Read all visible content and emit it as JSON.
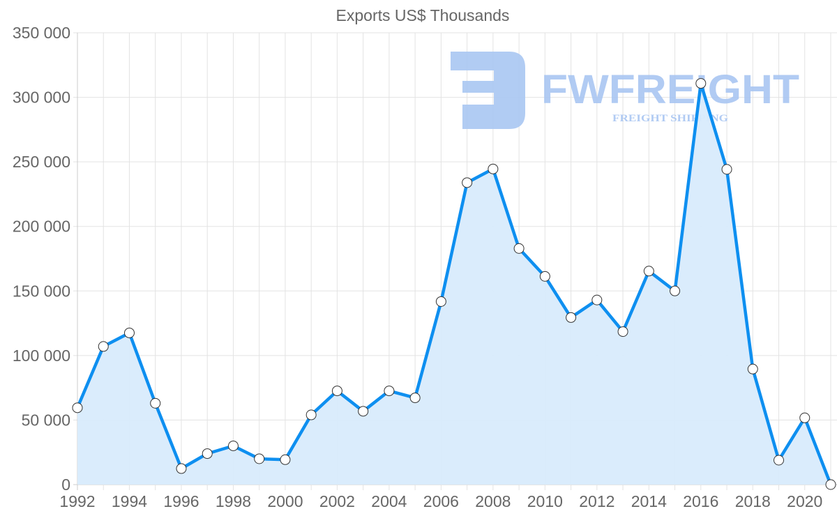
{
  "chart_data": {
    "type": "line",
    "title": "Exports US$ Thousands",
    "xlabel": "",
    "ylabel": "",
    "x": [
      1992,
      1993,
      1994,
      1995,
      1996,
      1997,
      1998,
      1999,
      2000,
      2001,
      2002,
      2003,
      2004,
      2005,
      2006,
      2007,
      2008,
      2009,
      2010,
      2011,
      2012,
      2013,
      2014,
      2015,
      2016,
      2017,
      2018,
      2019,
      2020,
      2021
    ],
    "series": [
      {
        "name": "Exports US$ Thousands",
        "values": [
          59500,
          107000,
          117500,
          63000,
          12400,
          24000,
          30000,
          20000,
          19300,
          54000,
          72600,
          56800,
          72600,
          67200,
          141800,
          233900,
          244500,
          182900,
          161300,
          129400,
          143000,
          118500,
          165400,
          150000,
          310800,
          244200,
          89500,
          18900,
          51700,
          0
        ]
      }
    ],
    "ylim": [
      0,
      350000
    ],
    "xlim": [
      1992,
      2021
    ],
    "yticks": [
      0,
      50000,
      100000,
      150000,
      200000,
      250000,
      300000,
      350000
    ],
    "ytick_labels": [
      "0",
      "50 000",
      "100 000",
      "150 000",
      "200 000",
      "250 000",
      "300 000",
      "350 000"
    ],
    "xticks": [
      1992,
      1994,
      1996,
      1998,
      2000,
      2002,
      2004,
      2006,
      2008,
      2010,
      2012,
      2014,
      2016,
      2018,
      2020
    ],
    "xtick_labels": [
      "1992",
      "1994",
      "1996",
      "1998",
      "2000",
      "2002",
      "2004",
      "2006",
      "2008",
      "2010",
      "2012",
      "2014",
      "2016",
      "2018",
      "2020"
    ],
    "grid": true,
    "legend": null,
    "fill": true
  },
  "colors": {
    "line": "#0e8ff0",
    "fill": "#d8ebfc",
    "grid": "#e3e3e3",
    "axis": "#cccccc",
    "text": "#666666",
    "point_fill": "#ffffff",
    "point_stroke": "#333333",
    "watermark": "#a9c6f2"
  },
  "watermark": {
    "brand": "FWFREIGHT",
    "tagline": "FREIGHT SHIPPING"
  }
}
